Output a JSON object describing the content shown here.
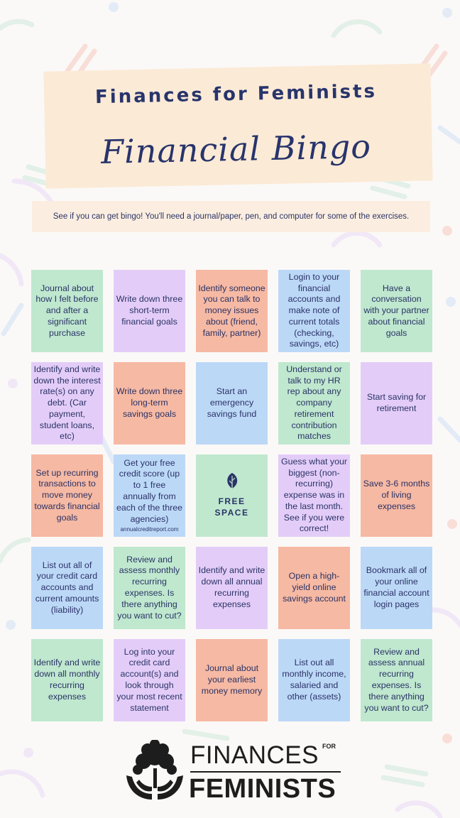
{
  "header": {
    "title": "Finances for Feminists",
    "subtitle": "Financial Bingo"
  },
  "intro": "See if you can get bingo! You'll need a journal/paper, pen, and computer for some of the exercises.",
  "colors": {
    "green": "#bfe8cf",
    "purple": "#e3cdf8",
    "orange": "#f6b9a3",
    "blue": "#bcd8f7",
    "navy": "#2b3366"
  },
  "bingo": [
    {
      "text": "Journal about how I felt before and after a significant purchase",
      "color": "green"
    },
    {
      "text": "Write down three short-term financial goals",
      "color": "purple"
    },
    {
      "text": "Identify someone you can talk to money issues about (friend, family, partner)",
      "color": "orange"
    },
    {
      "text": "Login to your financial accounts and make note of current totals (checking, savings, etc)",
      "color": "blue"
    },
    {
      "text": "Have a conversation with your partner about financial goals",
      "color": "green"
    },
    {
      "text": "Identify and write down the interest rate(s) on any debt. (Car payment, student loans, etc)",
      "color": "purple"
    },
    {
      "text": "Write down three long-term savings goals",
      "color": "orange"
    },
    {
      "text": "Start an emergency savings fund",
      "color": "blue"
    },
    {
      "text": "Understand or talk to my HR rep about any company retirement contribution matches",
      "color": "green"
    },
    {
      "text": "Start saving for retirement",
      "color": "purple"
    },
    {
      "text": "Set up recurring transactions to move money towards financial goals",
      "color": "orange"
    },
    {
      "text": "Get your free credit score (up to 1 free annually from each of the three agencies)",
      "color": "blue",
      "note": "annualcreditreport.com"
    },
    {
      "text": "FREE SPACE",
      "color": "green",
      "free": true,
      "icon": "leaf-icon"
    },
    {
      "text": "Guess what your biggest (non-recurring) expense was in the last month. See if you were correct!",
      "color": "purple"
    },
    {
      "text": "Save 3-6 months of living expenses",
      "color": "orange"
    },
    {
      "text": "List out all of your credit card accounts and current amounts (liability)",
      "color": "blue"
    },
    {
      "text": "Review and assess monthly recurring expenses. Is there anything you want to cut?",
      "color": "green"
    },
    {
      "text": "Identify and write down all annual recurring expenses",
      "color": "purple"
    },
    {
      "text": "Open a high-yield online savings account",
      "color": "orange"
    },
    {
      "text": "Bookmark all of your online financial account login pages",
      "color": "blue"
    },
    {
      "text": "Identify and write down all monthly recurring expenses",
      "color": "green"
    },
    {
      "text": "Log into your credit card account(s) and look through your most recent statement",
      "color": "purple"
    },
    {
      "text": "Journal about your earliest money memory",
      "color": "orange"
    },
    {
      "text": "List out all monthly income, salaried and other (assets)",
      "color": "blue"
    },
    {
      "text": "Review and assess annual recurring expenses. Is there anything you want to cut?",
      "color": "green"
    }
  ],
  "logo": {
    "line1": "FINANCES",
    "small": "FOR",
    "line2": "FEMINISTS",
    "icon": "tree-in-hands-icon"
  }
}
